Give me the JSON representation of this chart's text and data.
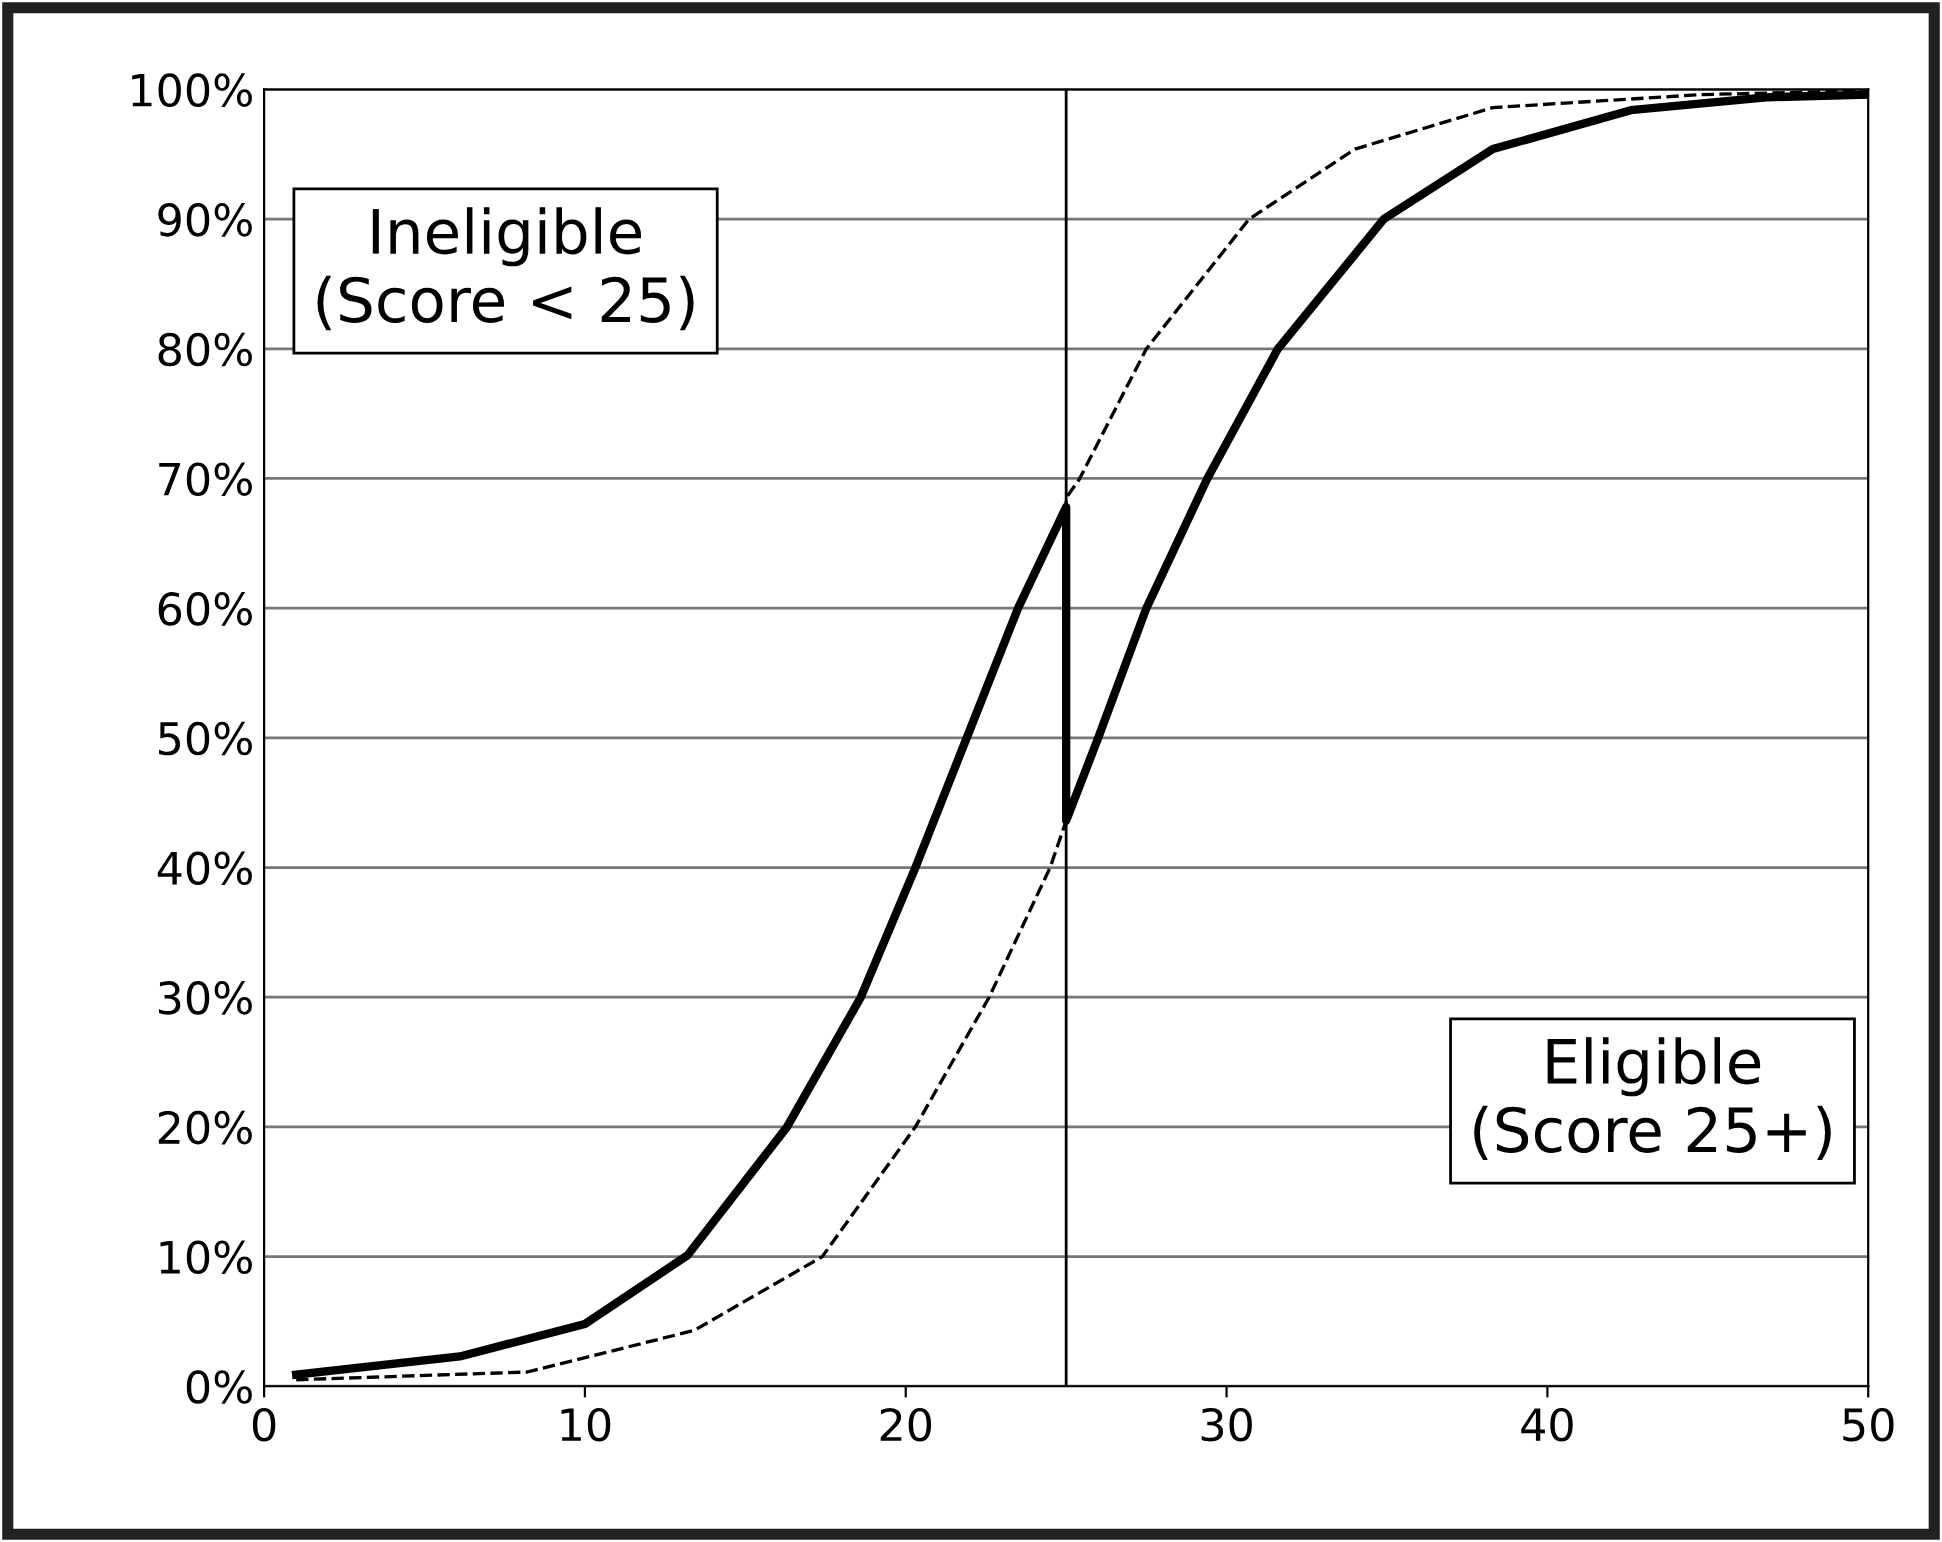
{
  "chart_data": {
    "type": "line",
    "series": [
      {
        "color": "#000000",
        "line_style": "solid",
        "x": [
          1,
          6.1,
          10,
          13.2,
          16.3,
          18.6,
          20.3,
          21.9,
          23.5,
          25,
          25,
          26,
          27.5,
          29.4,
          31.6,
          34.9,
          38.3,
          42.6,
          46.9,
          50
        ],
        "values": [
          0.9,
          2.3,
          4.8,
          10.1,
          20,
          30,
          40,
          50,
          60,
          67.8,
          43.6,
          50,
          60,
          70,
          80,
          90,
          95.4,
          98.4,
          99.4,
          99.6
        ]
      },
      {
        "color": "#000000",
        "line_style": "dashed",
        "x": [
          1,
          8.2,
          13.4,
          17.4,
          20.3,
          22.6,
          24.5,
          25,
          25,
          25.4,
          27.5,
          30.7,
          34,
          38.3,
          44.8,
          50
        ],
        "values": [
          0.5,
          1.1,
          4.3,
          10,
          20,
          30,
          40,
          43.6,
          68.5,
          69.9,
          80,
          90,
          95.4,
          98.6,
          99.6,
          99.9
        ]
      }
    ],
    "xlim": [
      0,
      50
    ],
    "xticks": [
      0,
      10,
      20,
      30,
      40,
      50
    ],
    "ylim": [
      0,
      100
    ],
    "yticks": [
      {
        "value": 0,
        "label": "0%"
      },
      {
        "value": 10,
        "label": "10%"
      },
      {
        "value": 20,
        "label": "20%"
      },
      {
        "value": 30,
        "label": "30%"
      },
      {
        "value": 40,
        "label": "40%"
      },
      {
        "value": 50,
        "label": "50%"
      },
      {
        "value": 60,
        "label": "60%"
      },
      {
        "value": 70,
        "label": "70%"
      },
      {
        "value": 80,
        "label": "80%"
      },
      {
        "value": 90,
        "label": "90%"
      },
      {
        "value": 100,
        "label": "100%"
      }
    ],
    "grid": "y",
    "legend": false,
    "marker": "none",
    "ref_lines": [
      {
        "axis": "x",
        "value": 25,
        "color": "#000000",
        "line_style": "solid"
      }
    ],
    "annotations": [
      "Ineligible\n(Score < 25)",
      "Eligible\n(Score 25+)"
    ]
  }
}
